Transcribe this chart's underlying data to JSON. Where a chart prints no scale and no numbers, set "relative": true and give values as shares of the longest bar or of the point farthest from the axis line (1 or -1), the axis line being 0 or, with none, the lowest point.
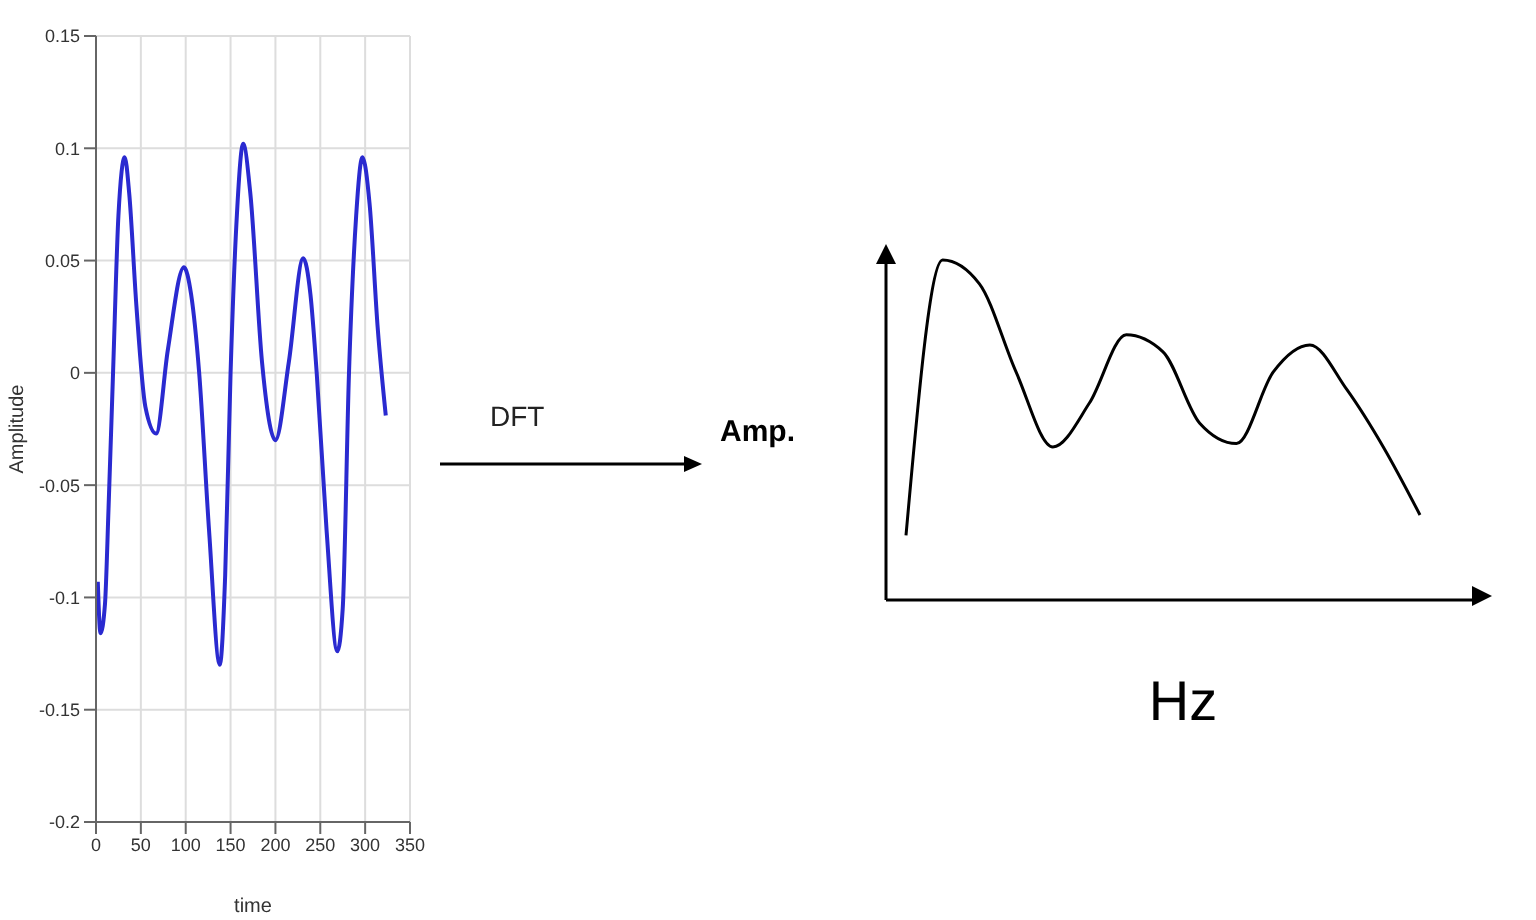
{
  "chart_data": [
    {
      "type": "line",
      "xlabel": "time",
      "ylabel": "Amplitude",
      "xlim": [
        0,
        350
      ],
      "xticks": [
        0,
        50,
        100,
        150,
        200,
        250,
        300,
        350
      ],
      "ylim": [
        -0.2,
        0.15
      ],
      "yticks": [
        -0.2,
        -0.15,
        -0.1,
        -0.05,
        0,
        0.05,
        0.1,
        0.15
      ],
      "grid": true,
      "x": [
        2,
        5,
        10,
        14,
        19,
        25,
        32,
        37,
        45,
        55,
        67,
        80,
        98,
        106,
        115,
        126,
        138,
        144,
        150,
        157,
        164,
        172,
        185,
        200,
        215,
        231,
        239,
        246,
        257,
        269,
        275,
        282,
        290,
        297,
        305,
        314,
        323
      ],
      "series": [
        {
          "color": "#2a2ad0",
          "values": [
            -0.093,
            -0.116,
            -0.103,
            -0.06,
            0,
            0.07,
            0.096,
            0.08,
            0.03,
            -0.015,
            -0.027,
            0.01,
            0.047,
            0.035,
            0,
            -0.07,
            -0.13,
            -0.09,
            0,
            0.07,
            0.102,
            0.08,
            0.005,
            -0.03,
            0.005,
            0.051,
            0.035,
            0,
            -0.07,
            -0.124,
            -0.105,
            0,
            0.07,
            0.096,
            0.075,
            0.02,
            -0.019
          ]
        }
      ]
    },
    {
      "type": "line",
      "xlabel": "Hz",
      "ylabel": "Amp.",
      "relative": true,
      "annotations": [
        "DFT"
      ],
      "categories": [
        null,
        null,
        null,
        null,
        null,
        null,
        null,
        null,
        null,
        null,
        null,
        null,
        null,
        null,
        null
      ],
      "series": [
        {
          "color": "#000000",
          "values": [
            0.19,
            1,
            0.93,
            0.67,
            0.45,
            0.58,
            0.78,
            0.73,
            0.52,
            0.46,
            0.67,
            0.75,
            0.62,
            0.45,
            0.25
          ]
        }
      ]
    }
  ]
}
